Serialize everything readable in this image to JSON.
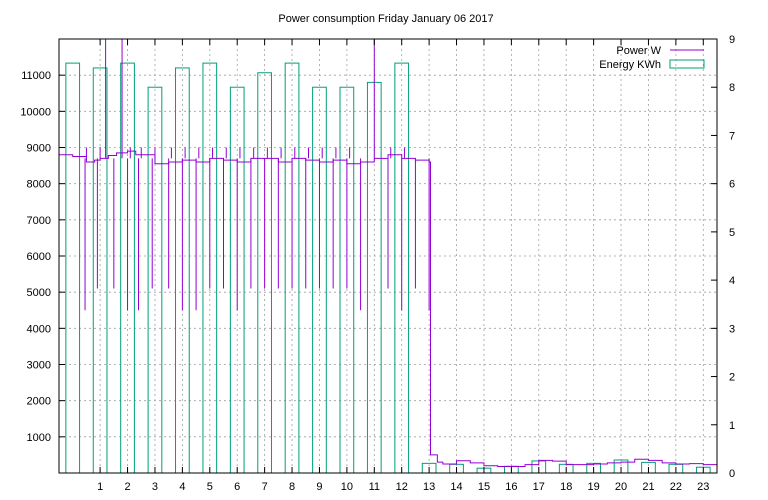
{
  "chart_data": {
    "type": "bar",
    "title": "Power consumption Friday January 06 2017",
    "x_ticks": [
      "1",
      "2",
      "3",
      "4",
      "5",
      "6",
      "7",
      "8",
      "9",
      "10",
      "11",
      "12",
      "13",
      "14",
      "15",
      "16",
      "17",
      "18",
      "19",
      "20",
      "21",
      "22",
      "23"
    ],
    "xlim": [
      -0.5,
      23.5
    ],
    "y_left": {
      "ticks": [
        "1000",
        "2000",
        "3000",
        "4000",
        "5000",
        "6000",
        "7000",
        "8000",
        "9000",
        "10000",
        "11000"
      ],
      "lim": [
        0,
        12000
      ]
    },
    "y_right": {
      "ticks": [
        "0",
        "1",
        "2",
        "3",
        "4",
        "5",
        "6",
        "7",
        "8",
        "9"
      ],
      "lim": [
        0,
        9
      ]
    },
    "grid": true,
    "legend": {
      "placement": "top-right",
      "entries": [
        {
          "name": "Power W",
          "color": "#9400d3",
          "style": "line"
        },
        {
          "name": "Energy KWh",
          "color": "#00a07a",
          "style": "box"
        }
      ]
    },
    "series": [
      {
        "name": "Energy KWh",
        "axis": "right",
        "color": "#00a07a",
        "hours": [
          0,
          1,
          2,
          3,
          4,
          5,
          6,
          7,
          8,
          9,
          10,
          11,
          12,
          13,
          14,
          15,
          16,
          17,
          18,
          19,
          20,
          21,
          22,
          23
        ],
        "values": [
          8.5,
          8.4,
          8.5,
          8.0,
          8.4,
          8.5,
          8.0,
          8.3,
          8.5,
          8.0,
          8.0,
          8.1,
          8.5,
          0.2,
          0.18,
          0.1,
          0.14,
          0.25,
          0.18,
          0.2,
          0.27,
          0.22,
          0.18,
          0.12
        ]
      },
      {
        "name": "Power W",
        "axis": "left",
        "color": "#9400d3",
        "points": [
          [
            -0.5,
            8800
          ],
          [
            0,
            8750
          ],
          [
            0.5,
            8600
          ],
          [
            0.8,
            8650
          ],
          [
            1,
            8700
          ],
          [
            1.3,
            8780
          ],
          [
            1.6,
            8850
          ],
          [
            2,
            8900
          ],
          [
            2.3,
            8800
          ],
          [
            2.6,
            8800
          ],
          [
            3,
            8550
          ],
          [
            3.5,
            8600
          ],
          [
            4,
            8650
          ],
          [
            4.5,
            8600
          ],
          [
            5,
            8700
          ],
          [
            5.5,
            8650
          ],
          [
            6,
            8600
          ],
          [
            6.5,
            8700
          ],
          [
            7,
            8700
          ],
          [
            7.5,
            8600
          ],
          [
            8,
            8700
          ],
          [
            8.5,
            8650
          ],
          [
            9,
            8600
          ],
          [
            9.5,
            8650
          ],
          [
            10,
            8550
          ],
          [
            10.5,
            8600
          ],
          [
            11,
            8700
          ],
          [
            11.5,
            8800
          ],
          [
            12,
            8700
          ],
          [
            12.5,
            8650
          ],
          [
            13,
            8600
          ],
          [
            13.05,
            500
          ],
          [
            13.3,
            300
          ],
          [
            13.5,
            250
          ],
          [
            14,
            340
          ],
          [
            14.5,
            280
          ],
          [
            15,
            200
          ],
          [
            15.5,
            180
          ],
          [
            16,
            180
          ],
          [
            16.5,
            230
          ],
          [
            17,
            350
          ],
          [
            17.5,
            330
          ],
          [
            18,
            230
          ],
          [
            18.5,
            230
          ],
          [
            19,
            250
          ],
          [
            19.5,
            280
          ],
          [
            20,
            300
          ],
          [
            20.5,
            380
          ],
          [
            21,
            350
          ],
          [
            21.5,
            280
          ],
          [
            22,
            250
          ],
          [
            22.5,
            260
          ],
          [
            23,
            230
          ],
          [
            23.5,
            300
          ]
        ],
        "spikes": [
          [
            0.45,
            4500
          ],
          [
            0.5,
            9000
          ],
          [
            0.9,
            5100
          ],
          [
            1.0,
            9000
          ],
          [
            1.2,
            12000
          ],
          [
            1.5,
            5100
          ],
          [
            1.8,
            12000
          ],
          [
            2.0,
            4500
          ],
          [
            2.1,
            9000
          ],
          [
            2.4,
            4500
          ],
          [
            2.5,
            9000
          ],
          [
            2.9,
            5100
          ],
          [
            3.0,
            9000
          ],
          [
            3.5,
            5100
          ],
          [
            3.6,
            9000
          ],
          [
            4.0,
            4500
          ],
          [
            4.1,
            9000
          ],
          [
            4.5,
            4500
          ],
          [
            4.6,
            9000
          ],
          [
            5.0,
            5100
          ],
          [
            5.1,
            9000
          ],
          [
            5.5,
            5100
          ],
          [
            5.6,
            9000
          ],
          [
            6.0,
            4500
          ],
          [
            6.1,
            9000
          ],
          [
            6.5,
            5100
          ],
          [
            6.6,
            9000
          ],
          [
            7.0,
            5100
          ],
          [
            7.1,
            9000
          ],
          [
            7.5,
            5100
          ],
          [
            7.6,
            9000
          ],
          [
            8.0,
            5100
          ],
          [
            8.1,
            9000
          ],
          [
            8.5,
            5100
          ],
          [
            8.6,
            9000
          ],
          [
            9.0,
            5100
          ],
          [
            9.1,
            9000
          ],
          [
            9.5,
            5100
          ],
          [
            9.6,
            9000
          ],
          [
            10.0,
            5100
          ],
          [
            10.1,
            9000
          ],
          [
            10.5,
            4500
          ],
          [
            11.0,
            12000
          ],
          [
            11.5,
            5100
          ],
          [
            11.6,
            9000
          ],
          [
            12.0,
            4500
          ],
          [
            12.1,
            9000
          ],
          [
            12.5,
            5100
          ],
          [
            13.0,
            4500
          ]
        ]
      }
    ]
  }
}
